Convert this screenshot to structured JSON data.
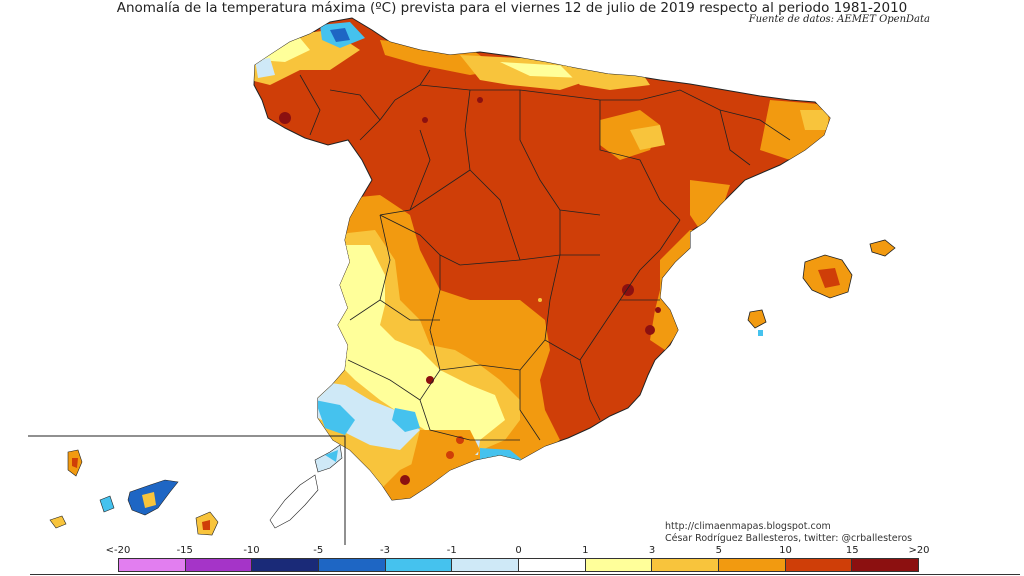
{
  "title": "Anomalía de la temperatura máxima (ºC) prevista para el viernes 12 de julio de 2019 respecto al periodo 1981-2010",
  "source": "Fuente de datos: AEMET OpenData",
  "credit": {
    "url": "http://climaenmapas.blogspot.com",
    "author": "César Rodríguez Ballesteros, twitter: @crballesteros"
  },
  "legend": {
    "labels": [
      "<-20",
      "-15",
      "-10",
      "-5",
      "-3",
      "-1",
      "0",
      "1",
      "3",
      "5",
      "10",
      "15",
      ">20"
    ],
    "colors": [
      "#e27ef0",
      "#a534c8",
      "#1a2a78",
      "#1e66c4",
      "#45c2ee",
      "#cfe9f7",
      "#ffffff",
      "#ffff9a",
      "#f8c43c",
      "#f29a10",
      "#cf3e08",
      "#8c1010",
      "#6b3f12"
    ]
  },
  "colors": {
    "cold": "#1e66c4",
    "cool": "#45c2ee",
    "near_zero": "#cfe9f7",
    "mild": "#ffff9a",
    "warm": "#f8c43c",
    "hot": "#f29a10",
    "very_hot": "#cf3e08",
    "extreme": "#8c1010"
  }
}
